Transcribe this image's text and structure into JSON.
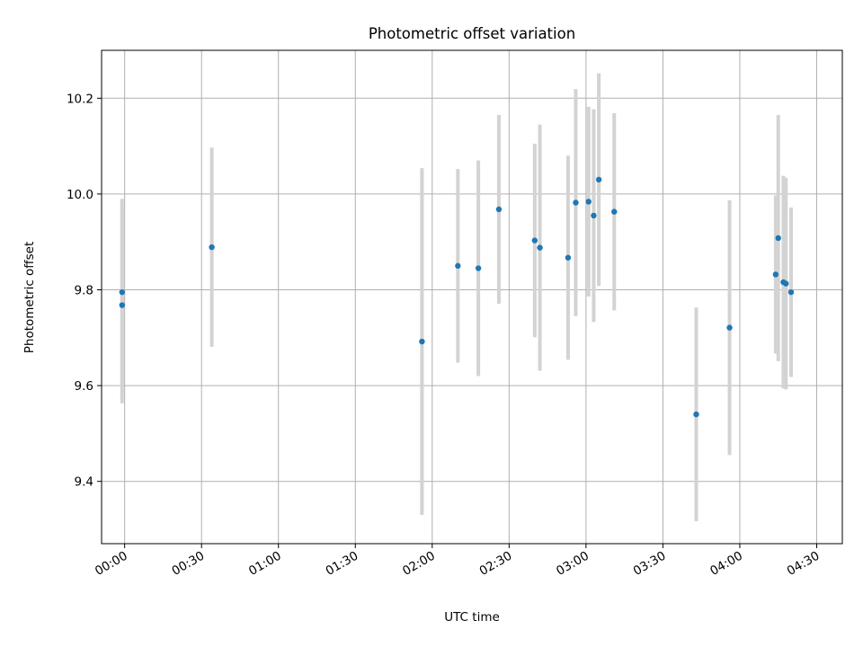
{
  "chart_data": {
    "type": "scatter",
    "title": "Photometric offset variation",
    "xlabel": "UTC time",
    "ylabel": "Photometric offset",
    "x_unit": "UTC time (HH:MM)",
    "xlim": [
      "23:51",
      "04:40"
    ],
    "ylim": [
      9.27,
      10.3
    ],
    "x_ticks": [
      "00:00",
      "00:30",
      "01:00",
      "01:30",
      "02:00",
      "02:30",
      "03:00",
      "03:30",
      "04:00",
      "04:30"
    ],
    "y_ticks": [
      9.4,
      9.6,
      9.8,
      10.0,
      10.2
    ],
    "y_tick_labels": [
      "9.4",
      "9.6",
      "9.8",
      "10.0",
      "10.2"
    ],
    "grid": true,
    "colors": {
      "point": "#1f77b4",
      "errorbar": "#d3d3d3",
      "grid": "#b0b0b0"
    },
    "points": [
      {
        "x": "23:59",
        "y": 9.795,
        "err": 0.195
      },
      {
        "x": "23:59",
        "y": 9.768,
        "err": 0.205
      },
      {
        "x": "00:34",
        "y": 9.889,
        "err": 0.208
      },
      {
        "x": "01:56",
        "y": 9.692,
        "err": 0.362
      },
      {
        "x": "02:10",
        "y": 9.85,
        "err": 0.202
      },
      {
        "x": "02:18",
        "y": 9.845,
        "err": 0.225
      },
      {
        "x": "02:26",
        "y": 9.968,
        "err": 0.197
      },
      {
        "x": "02:40",
        "y": 9.903,
        "err": 0.202
      },
      {
        "x": "02:42",
        "y": 9.888,
        "err": 0.257
      },
      {
        "x": "02:53",
        "y": 9.867,
        "err": 0.213
      },
      {
        "x": "02:56",
        "y": 9.982,
        "err": 0.237
      },
      {
        "x": "03:01",
        "y": 9.984,
        "err": 0.198
      },
      {
        "x": "03:03",
        "y": 9.955,
        "err": 0.222
      },
      {
        "x": "03:05",
        "y": 10.03,
        "err": 0.222
      },
      {
        "x": "03:11",
        "y": 9.963,
        "err": 0.206
      },
      {
        "x": "03:43",
        "y": 9.54,
        "err": 0.223
      },
      {
        "x": "03:56",
        "y": 9.721,
        "err": 0.266
      },
      {
        "x": "04:14",
        "y": 9.832,
        "err": 0.165
      },
      {
        "x": "04:15",
        "y": 9.908,
        "err": 0.257
      },
      {
        "x": "04:17",
        "y": 9.816,
        "err": 0.222
      },
      {
        "x": "04:18",
        "y": 9.813,
        "err": 0.221
      },
      {
        "x": "04:20",
        "y": 9.795,
        "err": 0.177
      }
    ]
  }
}
